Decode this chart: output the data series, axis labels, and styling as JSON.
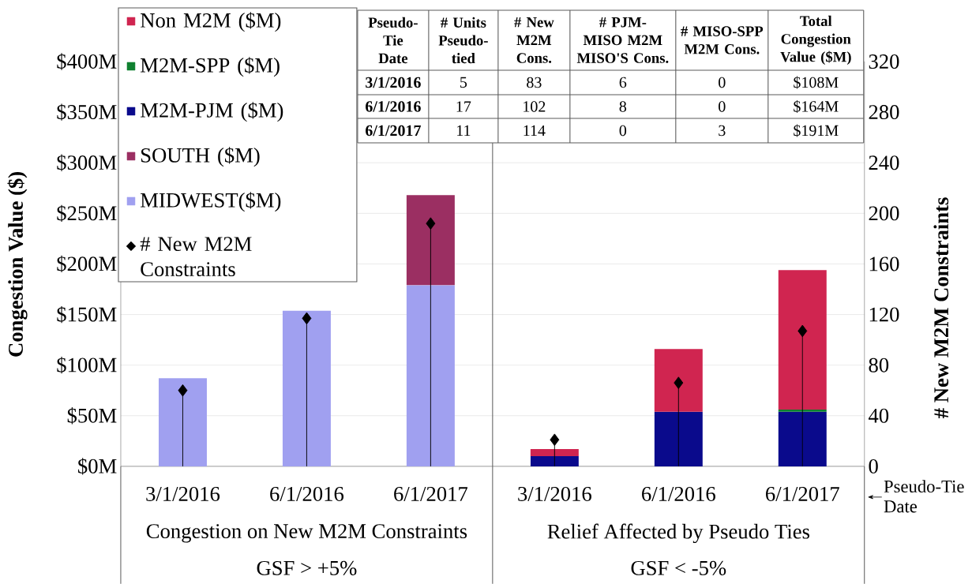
{
  "chart_data": {
    "type": "bar",
    "stacked": true,
    "categories": [
      "3/1/2016",
      "6/1/2016",
      "6/1/2017",
      "3/1/2016",
      "6/1/2016",
      "6/1/2017"
    ],
    "series": [
      {
        "name": "MIDWEST($M)",
        "color": "#a0a0f0",
        "values": [
          87,
          154,
          179,
          null,
          null,
          null
        ]
      },
      {
        "name": "SOUTH ($M)",
        "color": "#9b2f62",
        "values": [
          null,
          null,
          89,
          null,
          null,
          null
        ]
      },
      {
        "name": "M2M-PJM ($M)",
        "color": "#0a0a8c",
        "values": [
          null,
          null,
          null,
          10,
          54,
          54
        ]
      },
      {
        "name": "M2M-SPP ($M)",
        "color": "#108030",
        "values": [
          null,
          null,
          null,
          null,
          null,
          2
        ]
      },
      {
        "name": "Non M2M ($M)",
        "color": "#d02550",
        "values": [
          null,
          null,
          null,
          7,
          62,
          138
        ]
      },
      {
        "name": "# New M2M Constraints",
        "type": "lollipop",
        "axis": "y2",
        "color": "#000000",
        "values": [
          60,
          117,
          192,
          21,
          66,
          107
        ]
      }
    ],
    "marker": "diamond",
    "ylabel": "Congestion Value ($)",
    "y2label": "# New M2M Constraints",
    "ylim": [
      0,
      400
    ],
    "yticks": [
      {
        "value": 0,
        "label": "$0M"
      },
      {
        "value": 50,
        "label": "$50M"
      },
      {
        "value": 100,
        "label": "$100M"
      },
      {
        "value": 150,
        "label": "$150M"
      },
      {
        "value": 200,
        "label": "$200M"
      },
      {
        "value": 250,
        "label": "$250M"
      },
      {
        "value": 300,
        "label": "$300M"
      },
      {
        "value": 350,
        "label": "$350M"
      },
      {
        "value": 400,
        "label": "$400M"
      }
    ],
    "y2lim": [
      0,
      320
    ],
    "y2ticks": [
      0,
      40,
      80,
      120,
      160,
      200,
      240,
      280,
      320
    ],
    "grid": "y",
    "legend": "top left",
    "annotations": [
      "Congestion on New M2M Constraints",
      "GSF > +5%",
      "Relief Affected by Pseudo Ties",
      "GSF < -5%",
      "Pseudo-Tie Date",
      "Pseudo-Tie Date",
      "# Units Pseudo-tied",
      "# New M2M Cons.",
      "# PJM-MISO M2M MISO'S Cons.",
      "# MISO-SPP M2M Cons.",
      "Total Congestion Value ($M)",
      "3/1/2016",
      "5",
      "83",
      "6",
      "0",
      "$108M",
      "6/1/2016",
      "17",
      "102",
      "8",
      "0",
      "$164M",
      "6/1/2017",
      "11",
      "114",
      "0",
      "3",
      "$191M"
    ]
  }
}
